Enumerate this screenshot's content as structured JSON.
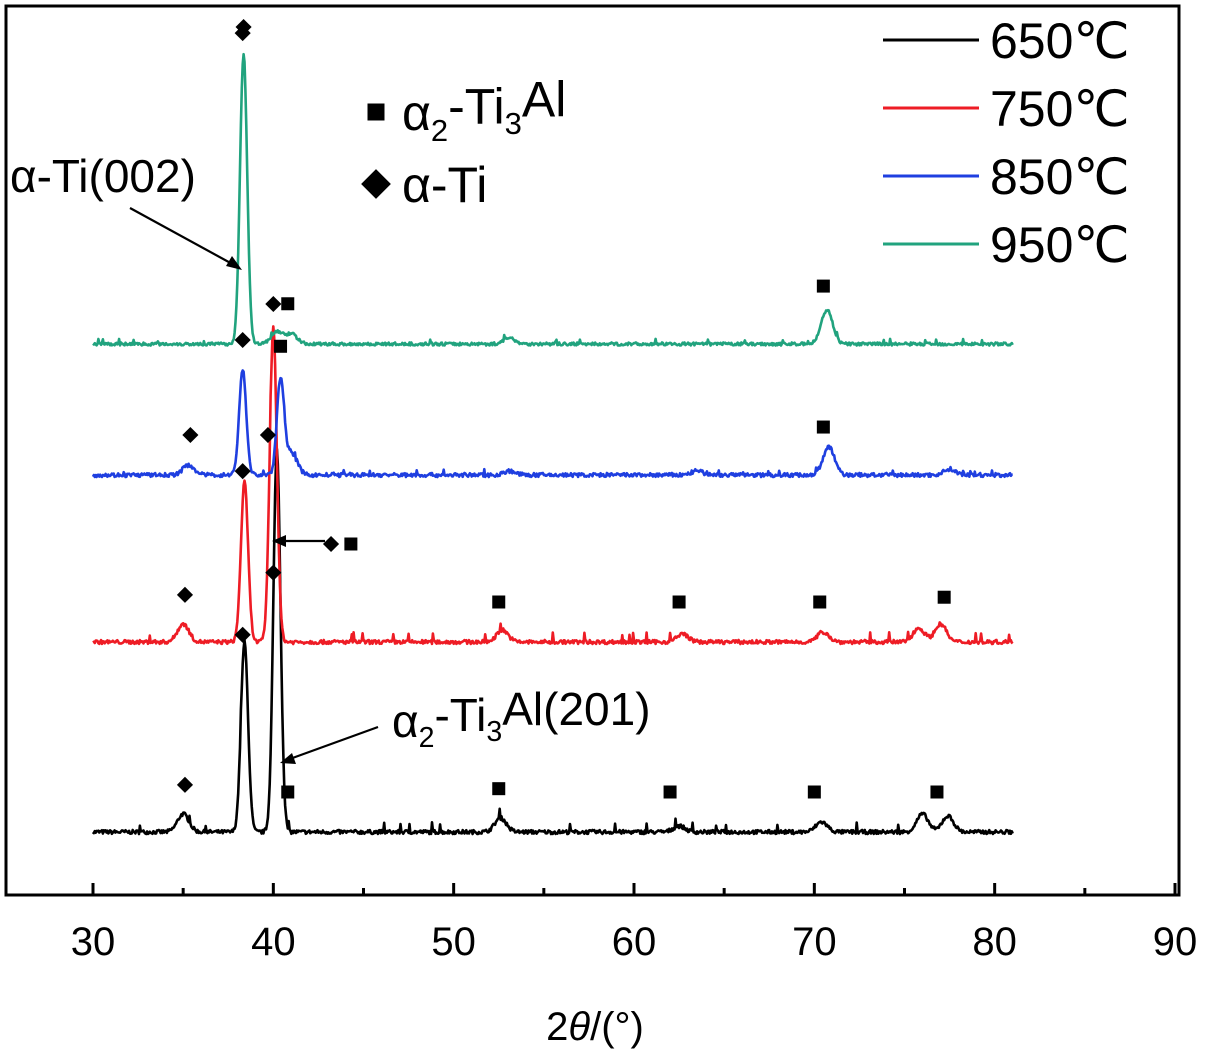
{
  "chart_data": {
    "type": "line",
    "title": "",
    "xlabel": {
      "prefix": "2",
      "italic": "θ",
      "suffix": "/(°)"
    },
    "ylabel": "",
    "xlim": [
      25,
      90
    ],
    "x_ticks": [
      30,
      40,
      50,
      60,
      70,
      80,
      90
    ],
    "x_tick_labels": [
      "30",
      "40",
      "50",
      "60",
      "70",
      "80",
      "90"
    ],
    "y_axis": "unlabeled (stacked patterns, arbitrary intensity)",
    "legend": {
      "placement": "top-right"
    },
    "series": [
      {
        "name": "650℃",
        "color": "#000000",
        "offset": 0,
        "peaks": [
          [
            35.0,
            18
          ],
          [
            38.4,
            190
          ],
          [
            40.2,
            382
          ],
          [
            52.6,
            14
          ],
          [
            62.5,
            6
          ],
          [
            70.4,
            10
          ],
          [
            76.0,
            18
          ],
          [
            77.4,
            16
          ]
        ],
        "noise": 4,
        "tick": 2
      },
      {
        "name": "750℃",
        "color": "#ee1c25",
        "offset": 190,
        "peaks": [
          [
            35.0,
            18
          ],
          [
            38.4,
            160
          ],
          [
            40.0,
            315
          ],
          [
            52.7,
            12
          ],
          [
            62.7,
            8
          ],
          [
            70.5,
            10
          ],
          [
            75.8,
            14
          ],
          [
            77.0,
            18
          ]
        ],
        "noise": 4,
        "tick": 2
      },
      {
        "name": "850℃",
        "color": "#1f3fe0",
        "offset": 357,
        "peaks": [
          [
            35.3,
            10
          ],
          [
            38.3,
            105
          ],
          [
            40.4,
            95
          ],
          [
            41.0,
            22
          ],
          [
            53.1,
            4
          ],
          [
            63.5,
            4
          ],
          [
            70.8,
            28
          ],
          [
            77.5,
            6
          ]
        ],
        "noise": 4,
        "tick": 1
      },
      {
        "name": "950℃",
        "color": "#21a37e",
        "offset": 488,
        "peaks": [
          [
            38.35,
            290
          ],
          [
            40.2,
            12
          ],
          [
            41.0,
            10
          ],
          [
            53.1,
            6
          ],
          [
            70.7,
            34
          ]
        ],
        "noise": 3,
        "tick": 1
      }
    ],
    "phase_legend": [
      {
        "marker": "square",
        "label_base": "α",
        "label_sub": "2",
        "label_mid": "-Ti",
        "label_sub2": "3",
        "label_end": "Al"
      },
      {
        "marker": "diamond",
        "label_base": "α-Ti",
        "label_sub": "",
        "label_mid": "",
        "label_sub2": "",
        "label_end": ""
      }
    ],
    "annotations": [
      {
        "base": "α-Ti(002)",
        "sub": "",
        "mid": "",
        "sub2": "",
        "end": "",
        "target_x": 38.3,
        "target_series": 3
      },
      {
        "base": "α",
        "sub": "2",
        "mid": "-Ti",
        "sub2": "3",
        "end": "Al(201)",
        "target_x": 40.4,
        "target_series": 0
      }
    ],
    "phase_markers": [
      {
        "series": 3,
        "items": [
          [
            "diamond",
            38.3
          ],
          [
            "diamond",
            40.0
          ],
          [
            "square",
            40.8
          ],
          [
            "square",
            70.5
          ]
        ]
      },
      {
        "series": 2,
        "items": [
          [
            "diamond",
            38.3
          ],
          [
            "diamond",
            35.4
          ],
          [
            "diamond",
            39.7
          ],
          [
            "square",
            40.4
          ],
          [
            "square",
            70.5
          ]
        ]
      },
      {
        "series": 1,
        "items": [
          [
            "diamond",
            38.3
          ],
          [
            "diamond",
            35.1
          ],
          [
            "square",
            52.5
          ],
          [
            "square",
            62.5
          ],
          [
            "square",
            70.3
          ],
          [
            "square",
            77.2
          ]
        ]
      },
      {
        "series": 0,
        "items": [
          [
            "diamond",
            38.3
          ],
          [
            "diamond",
            40.0
          ],
          [
            "square",
            40.8
          ],
          [
            "diamond",
            35.1
          ],
          [
            "square",
            52.5
          ],
          [
            "square",
            62.0
          ],
          [
            "square",
            70.0
          ],
          [
            "square",
            76.8
          ]
        ]
      }
    ],
    "pointer_markers": [
      [
        "diamond",
        43.2
      ],
      [
        "square",
        44.3
      ]
    ]
  }
}
